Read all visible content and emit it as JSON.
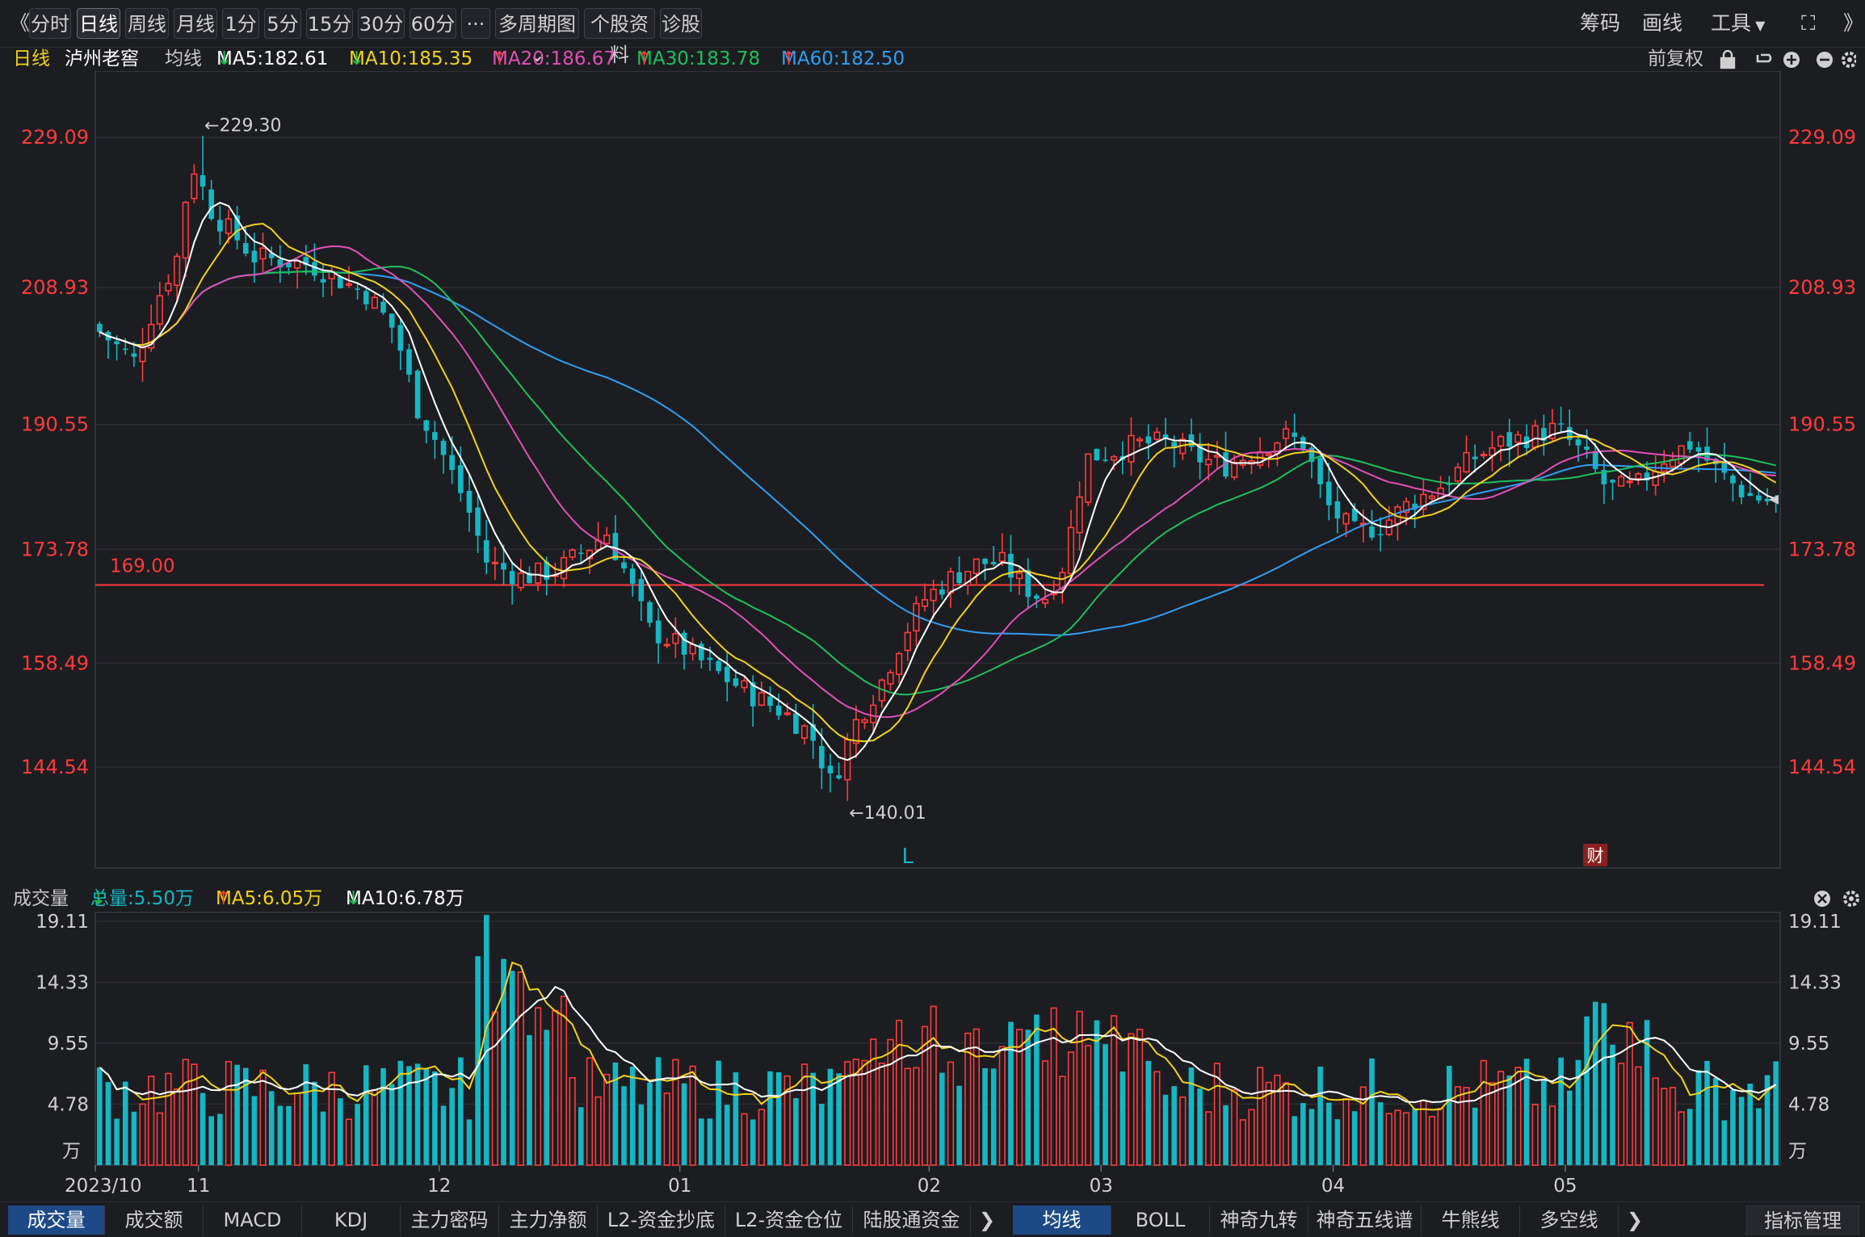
{
  "toolbar": {
    "back_glyph": "《",
    "periods": [
      "分时",
      "日线",
      "周线",
      "月线",
      "1分",
      "5分",
      "15分",
      "30分",
      "60分"
    ],
    "active_period": "日线",
    "more_glyph": "···",
    "multi_period": "多周期图",
    "stock_info": "个股资料",
    "diagnose": "诊股",
    "chips": "筹码",
    "draw": "画线",
    "tools": "工具",
    "fullscreen_glyph": "⛶",
    "collapse_glyph": "》"
  },
  "info": {
    "period": "日线",
    "name": "泸州老窖",
    "avg_label": "均线",
    "ma": [
      {
        "label": "MA5:182.61",
        "arrow": "↓",
        "color": "#ffffff",
        "arrow_color": "#19c24c"
      },
      {
        "label": "MA10:185.35",
        "arrow": "↓",
        "color": "#f2d21d",
        "arrow_color": "#19c24c"
      },
      {
        "label": "MA20:186.67",
        "arrow": "↑",
        "color": "#e04fb7",
        "arrow_color": "#ff3b3b"
      },
      {
        "label": "MA30:183.78",
        "arrow": "↑",
        "color": "#1fbf5c",
        "arrow_color": "#ff3b3b"
      },
      {
        "label": "MA60:182.50",
        "arrow": "↑",
        "color": "#2f9ff2",
        "arrow_color": "#ff3b3b"
      }
    ],
    "adjust": "前复权"
  },
  "volume_info": {
    "title": "成交量",
    "total": "总量:5.50万",
    "total_arrow": "↓",
    "ma5": "MA5:6.05万",
    "ma5_arrow": "↑",
    "ma10": "MA10:6.78万",
    "ma10_arrow": "↓"
  },
  "colors": {
    "up": "#ff3b3b",
    "down": "#16b6c4",
    "ma5": "#ffffff",
    "ma10": "#f2d21d",
    "ma20": "#e04fb7",
    "ma30": "#1fbf5c",
    "ma60": "#2f9ff2",
    "axis_text": "#ff3b3b",
    "grid": "#2c2d33"
  },
  "chart_data": {
    "type": "candlestick",
    "y_ticks": [
      "229.09",
      "208.93",
      "190.55",
      "173.78",
      "158.49",
      "144.54"
    ],
    "ylim": [
      131,
      238
    ],
    "high_marker": "←229.30",
    "low_marker": "←140.01",
    "support_line": {
      "value": 169.0,
      "label": "169.00"
    },
    "flag_L": "L",
    "flag_cai": "财",
    "x_labels": [
      {
        "label": "2023/10",
        "index": 0
      },
      {
        "label": "11",
        "index": 12
      },
      {
        "label": "12",
        "index": 40
      },
      {
        "label": "01",
        "index": 68
      },
      {
        "label": "02",
        "index": 97
      },
      {
        "label": "03",
        "index": 117
      },
      {
        "label": "04",
        "index": 144
      },
      {
        "label": "05",
        "index": 171
      }
    ],
    "n_bars": 196,
    "volume": {
      "y_ticks": [
        "19.11",
        "14.33",
        "9.55",
        "4.78"
      ],
      "unit": "万",
      "ylim": [
        0,
        19.8
      ]
    }
  },
  "bottom": {
    "left_tabs": [
      "成交量",
      "成交额",
      "MACD",
      "KDJ",
      "主力密码",
      "主力净额",
      "L2-资金抄底",
      "L2-资金仓位",
      "陆股通资金"
    ],
    "right_tabs": [
      "均线",
      "BOLL",
      "神奇九转",
      "神奇五线谱",
      "牛熊线",
      "多空线"
    ],
    "more_glyph": "❯",
    "manage": "指标管理"
  }
}
